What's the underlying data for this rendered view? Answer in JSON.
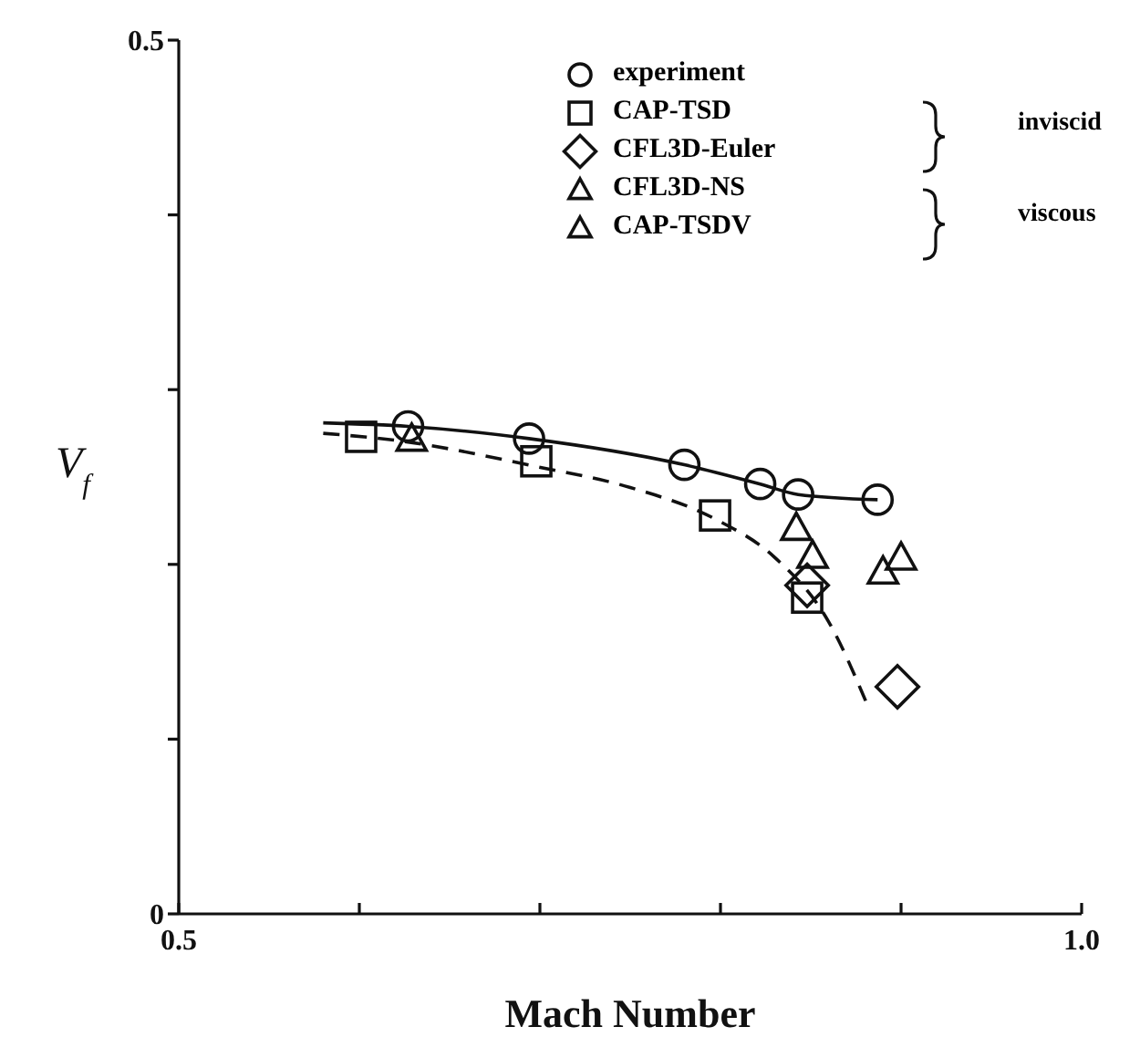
{
  "chart_data": {
    "type": "scatter",
    "xlabel": "Mach Number",
    "ylabel": "V$_{f}$",
    "xlim": [
      0.5,
      1.0
    ],
    "ylim": [
      0,
      0.5
    ],
    "xticks": [
      0.5,
      {
        "value": 0.6,
        "label": null
      },
      {
        "value": 0.7,
        "label": null
      },
      {
        "value": 0.8,
        "label": null
      },
      {
        "value": 0.9,
        "label": null
      },
      {
        "value": 1.0,
        "label": "1.0"
      }
    ],
    "yticks": [
      0,
      {
        "value": 0.1,
        "label": null
      },
      {
        "value": 0.2,
        "label": null
      },
      {
        "value": 0.3,
        "label": null
      },
      {
        "value": 0.4,
        "label": null
      },
      0.5
    ],
    "grid": false,
    "legend": "top",
    "annotations": [
      "inviscid",
      "viscous"
    ],
    "series": [
      {
        "name": "experiment",
        "marker": "circle",
        "color": "#111111",
        "x": [
          0.627,
          0.694,
          0.78,
          0.822,
          0.843,
          0.887
        ],
        "values": [
          0.279,
          0.272,
          0.257,
          0.246,
          0.24,
          0.237
        ]
      },
      {
        "name": "CAP-TSD",
        "marker": "square",
        "color": "#111111",
        "x": [
          0.601,
          0.698,
          0.797,
          0.848
        ],
        "values": [
          0.273,
          0.259,
          0.228,
          0.181
        ]
      },
      {
        "name": "CFL3D-Euler",
        "marker": "diamond",
        "color": "#111111",
        "x": [
          0.848,
          0.898
        ],
        "values": [
          0.188,
          0.13
        ]
      },
      {
        "name": "CFL3D-NS",
        "marker": "triangle",
        "color": "#111111",
        "x": [
          0.851,
          0.9
        ],
        "values": [
          0.205,
          0.204
        ]
      },
      {
        "name": "CAP-TSDV",
        "marker": "triangle",
        "color": "#111111",
        "x": [
          0.629,
          0.842,
          0.89
        ],
        "values": [
          0.272,
          0.221,
          0.196
        ]
      },
      {
        "type": "line",
        "line_style": "solid",
        "marker": "none",
        "color": "#111111",
        "x": [
          0.58,
          0.627,
          0.694,
          0.78,
          0.822,
          0.843,
          0.887
        ],
        "values": [
          0.281,
          0.279,
          0.272,
          0.257,
          0.246,
          0.24,
          0.237
        ]
      },
      {
        "type": "line",
        "line_style": "dashed",
        "marker": "none",
        "color": "#111111",
        "x": [
          0.58,
          0.62,
          0.698,
          0.75,
          0.797,
          0.83,
          0.86,
          0.882
        ],
        "values": [
          0.275,
          0.271,
          0.256,
          0.244,
          0.226,
          0.204,
          0.167,
          0.118
        ]
      }
    ]
  }
}
